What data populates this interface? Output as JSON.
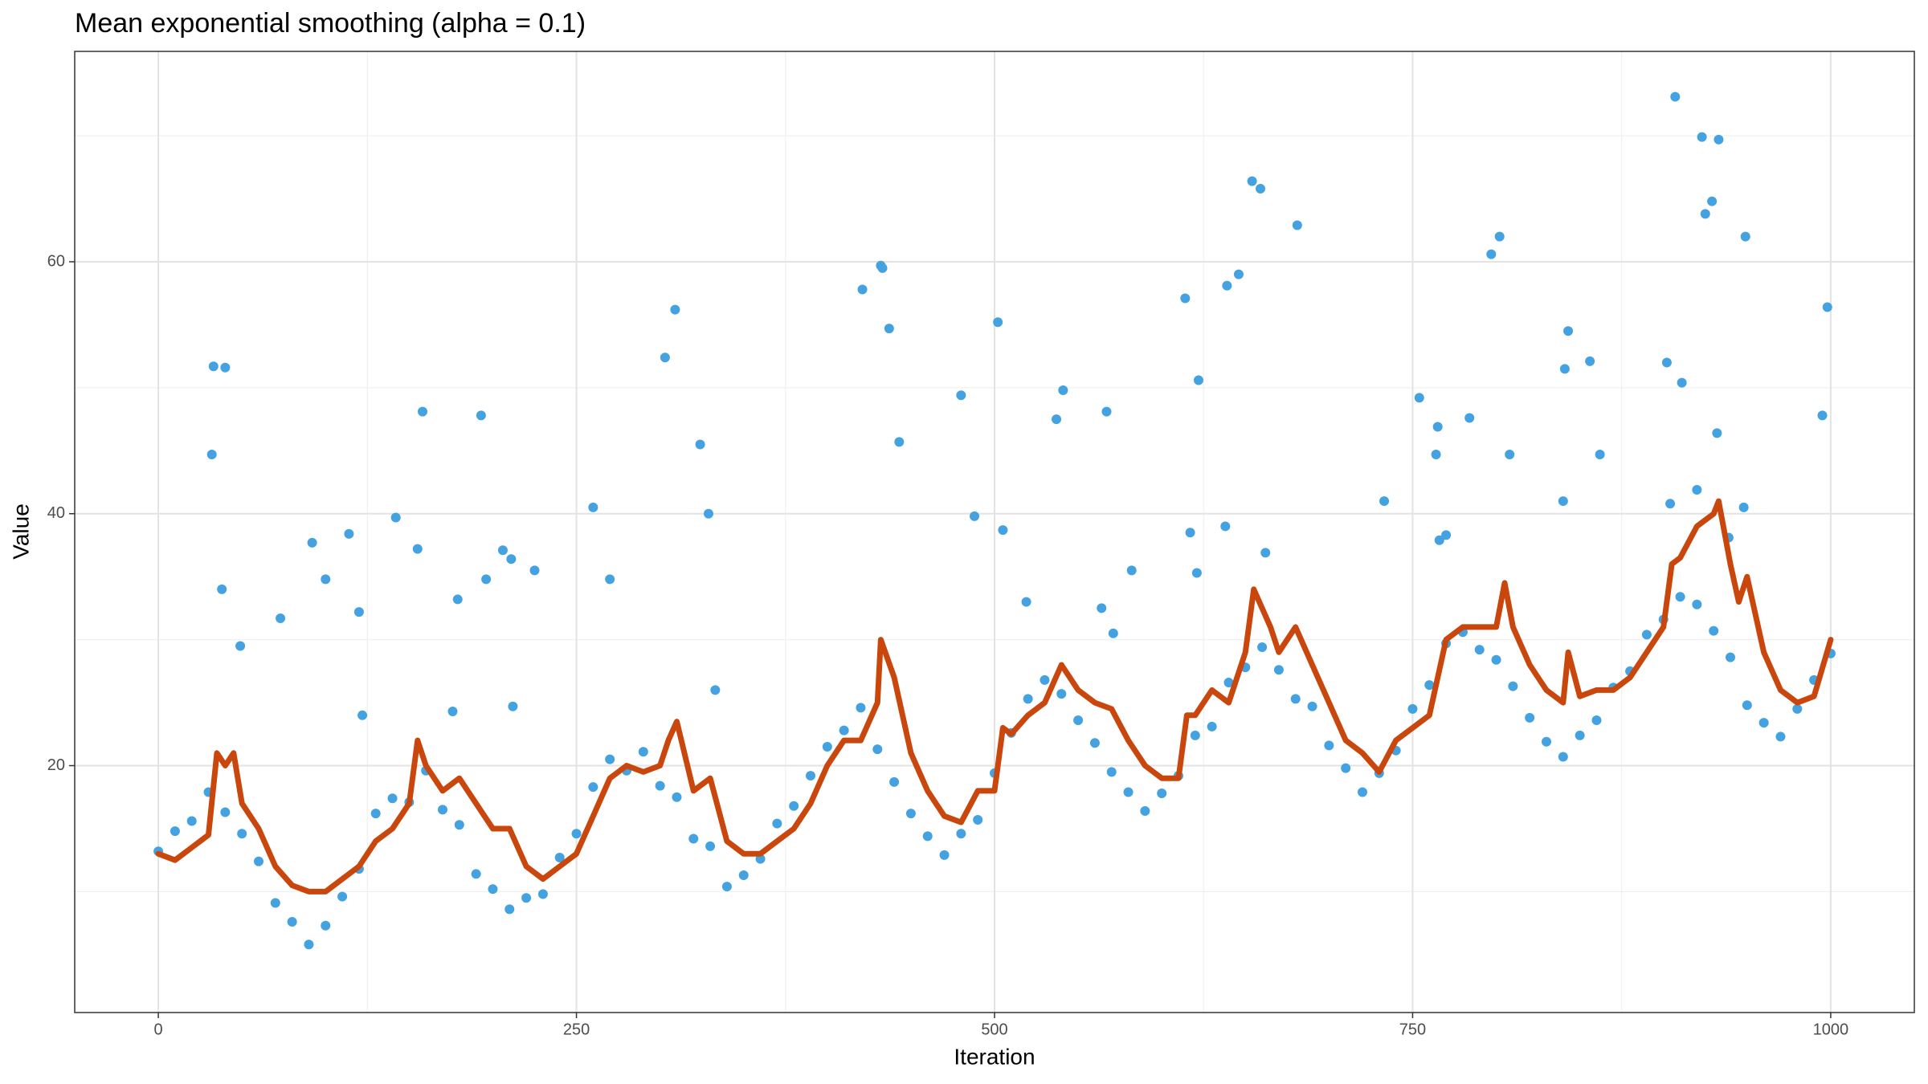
{
  "chart_data": {
    "type": "scatter",
    "title": "Mean exponential smoothing (alpha = 0.1)",
    "x_label": "Iteration",
    "y_label": "Value",
    "xlim": [
      -50,
      1050
    ],
    "ylim": [
      0.4,
      76.7
    ],
    "xticks": [
      0,
      250,
      500,
      750,
      1000
    ],
    "yticks": [
      20,
      40,
      60
    ],
    "x_minor_grid": [
      125,
      375,
      625,
      875
    ],
    "y_minor_grid": [
      10,
      30,
      50,
      70
    ],
    "grid": true,
    "series": [
      {
        "mode": "markers",
        "color": "#44a2e0",
        "x": [
          0,
          10,
          20,
          30,
          40,
          50,
          60,
          70,
          80,
          90,
          100,
          110,
          120,
          130,
          140,
          150,
          160,
          170,
          180,
          190,
          200,
          210,
          220,
          230,
          240,
          250,
          260,
          270,
          280,
          290,
          300,
          310,
          320,
          330,
          340,
          350,
          360,
          370,
          380,
          390,
          400,
          410,
          420,
          430,
          440,
          450,
          460,
          470,
          480,
          490,
          500,
          510,
          520,
          530,
          540,
          550,
          560,
          570,
          580,
          590,
          600,
          610,
          620,
          630,
          640,
          650,
          660,
          670,
          680,
          690,
          700,
          710,
          720,
          730,
          740,
          750,
          760,
          770,
          780,
          790,
          800,
          810,
          820,
          830,
          840,
          850,
          860,
          870,
          880,
          890,
          900,
          910,
          920,
          930,
          940,
          950,
          960,
          970,
          980,
          990,
          1000,
          33,
          32,
          40,
          38,
          49,
          73,
          92,
          100,
          114,
          120,
          122,
          142,
          155,
          158,
          179,
          176,
          193,
          196,
          206,
          211,
          212,
          225,
          260,
          270,
          303,
          309,
          324,
          329,
          333,
          421,
          432,
          433,
          437,
          443,
          480,
          488,
          502,
          505,
          519,
          537,
          541,
          567,
          564,
          571,
          582,
          614,
          617,
          621,
          622,
          638,
          639,
          646,
          654,
          659,
          662,
          681,
          733,
          754,
          764,
          765,
          766,
          770,
          784,
          797,
          802,
          808,
          840,
          841,
          843,
          856,
          862,
          902,
          904,
          907,
          911,
          920,
          923,
          925,
          929,
          932,
          933,
          939,
          949,
          948,
          995,
          998
        ],
        "values": [
          13.2,
          14.8,
          15.6,
          17.9,
          16.3,
          14.6,
          12.4,
          9.1,
          7.6,
          5.8,
          7.3,
          9.6,
          11.8,
          16.2,
          17.4,
          17.1,
          19.6,
          16.5,
          15.3,
          11.4,
          10.2,
          8.6,
          9.5,
          9.8,
          12.7,
          14.6,
          18.3,
          20.5,
          19.6,
          21.1,
          18.4,
          17.5,
          14.2,
          13.6,
          10.4,
          11.3,
          12.6,
          15.4,
          16.8,
          19.2,
          21.5,
          22.8,
          24.6,
          21.3,
          18.7,
          16.2,
          14.4,
          12.9,
          14.6,
          15.7,
          19.4,
          22.6,
          25.3,
          26.8,
          25.7,
          23.6,
          21.8,
          19.5,
          17.9,
          16.4,
          17.8,
          19.2,
          22.4,
          23.1,
          26.6,
          27.8,
          29.4,
          27.6,
          25.3,
          24.7,
          21.6,
          19.8,
          17.9,
          19.4,
          21.2,
          24.5,
          26.4,
          29.7,
          30.6,
          29.2,
          28.4,
          26.3,
          23.8,
          21.9,
          20.7,
          22.4,
          23.6,
          26.2,
          27.5,
          30.4,
          31.6,
          33.4,
          32.8,
          30.7,
          28.6,
          24.8,
          23.4,
          22.3,
          24.5,
          26.8,
          28.9,
          51.7,
          44.7,
          51.6,
          34,
          29.5,
          31.7,
          37.7,
          34.8,
          38.4,
          32.2,
          24,
          39.7,
          37.2,
          48.1,
          33.2,
          24.3,
          47.8,
          34.8,
          37.1,
          36.4,
          24.7,
          35.5,
          40.5,
          34.8,
          52.4,
          56.2,
          45.5,
          40,
          26,
          57.8,
          59.7,
          59.5,
          54.7,
          45.7,
          49.4,
          39.8,
          55.2,
          38.7,
          33,
          47.5,
          49.8,
          48.1,
          32.5,
          30.5,
          35.5,
          57.1,
          38.5,
          35.3,
          50.6,
          39,
          58.1,
          59,
          66.4,
          65.8,
          36.9,
          62.9,
          41,
          49.2,
          44.7,
          46.9,
          37.9,
          38.3,
          47.6,
          60.6,
          62,
          44.7,
          41,
          51.5,
          54.5,
          52.1,
          44.7,
          52,
          40.8,
          73.1,
          50.4,
          41.9,
          69.9,
          63.8,
          64.8,
          46.4,
          69.7,
          38.1,
          62,
          40.5,
          47.8,
          56.4
        ]
      },
      {
        "mode": "lines",
        "color": "#c9470c",
        "x": [
          0,
          10,
          20,
          30,
          35,
          40,
          45,
          50,
          60,
          70,
          80,
          90,
          100,
          110,
          120,
          130,
          140,
          150,
          155,
          160,
          170,
          180,
          190,
          200,
          210,
          220,
          230,
          240,
          250,
          260,
          270,
          280,
          290,
          300,
          305,
          310,
          320,
          330,
          340,
          350,
          360,
          370,
          380,
          390,
          400,
          410,
          420,
          430,
          432,
          440,
          450,
          460,
          470,
          480,
          490,
          500,
          505,
          510,
          520,
          530,
          540,
          550,
          560,
          570,
          580,
          590,
          600,
          610,
          615,
          620,
          630,
          640,
          650,
          655,
          665,
          670,
          680,
          690,
          700,
          710,
          720,
          730,
          740,
          750,
          760,
          770,
          780,
          790,
          800,
          805,
          810,
          820,
          830,
          840,
          843,
          850,
          860,
          870,
          880,
          890,
          900,
          905,
          910,
          920,
          930,
          933,
          940,
          945,
          950,
          960,
          970,
          980,
          990,
          1000
        ],
        "values": [
          13,
          12.5,
          13.5,
          14.5,
          21,
          20,
          21,
          17,
          15,
          12,
          10.5,
          10,
          10,
          11,
          12,
          14,
          15,
          17,
          22,
          20,
          18,
          19,
          17,
          15,
          15,
          12,
          11,
          12,
          13,
          16,
          19,
          20,
          19.5,
          20,
          22,
          23.5,
          18,
          19,
          14,
          13,
          13,
          14,
          15,
          17,
          20,
          22,
          22,
          25,
          30,
          27,
          21,
          18,
          16,
          15.5,
          18,
          18,
          23,
          22.5,
          24,
          25,
          28,
          26,
          25,
          24.5,
          22,
          20,
          19,
          19,
          24,
          24,
          26,
          25,
          29,
          34,
          31,
          29,
          31,
          28,
          25,
          22,
          21,
          19.5,
          22,
          23,
          24,
          30,
          31,
          31,
          31,
          34.5,
          31,
          28,
          26,
          25,
          29,
          25.5,
          26,
          26,
          27,
          29,
          31,
          36,
          36.5,
          39,
          40,
          41,
          36,
          33,
          35,
          29,
          26,
          25,
          25.5,
          30
        ]
      }
    ]
  }
}
